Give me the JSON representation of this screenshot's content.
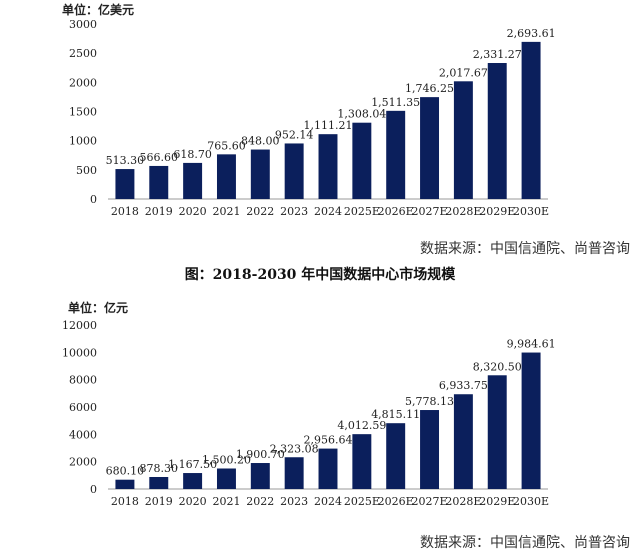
{
  "bar_color": "#0b1f5c",
  "chart_data": [
    {
      "type": "bar",
      "unit_label": "单位：亿美元",
      "categories": [
        "2018",
        "2019",
        "2020",
        "2021",
        "2022",
        "2023",
        "2024",
        "2025E",
        "2026E",
        "2027E",
        "2028E",
        "2029E",
        "2030E"
      ],
      "values": [
        513.3,
        566.6,
        618.7,
        765.6,
        848.0,
        952.14,
        1111.21,
        1308.04,
        1511.35,
        1746.25,
        2017.67,
        2331.27,
        2693.61
      ],
      "labels": [
        "513.30",
        "566.60",
        "618.70",
        "765.60",
        "848.00",
        "952.14",
        "1,111.21",
        "1,308.04",
        "1,511.35",
        "1,746.25",
        "2,017.67",
        "2,331.27",
        "2,693.61"
      ],
      "yticks": [
        "0",
        "500",
        "1000",
        "1500",
        "2000",
        "2500",
        "3000"
      ],
      "ylim": [
        0,
        3000
      ],
      "source": "数据来源：中国信通院、尚普咨询"
    },
    {
      "type": "bar",
      "unit_label": "单位：亿元",
      "categories": [
        "2018",
        "2019",
        "2020",
        "2021",
        "2022",
        "2023",
        "2024",
        "2025E",
        "2026E",
        "2027E",
        "2028E",
        "2029E",
        "2030E"
      ],
      "values": [
        680.1,
        878.3,
        1167.5,
        1500.2,
        1900.7,
        2323.08,
        2956.64,
        4012.59,
        4815.11,
        5778.13,
        6933.75,
        8320.5,
        9984.61
      ],
      "labels": [
        "680.10",
        "878.30",
        "1,167.50",
        "1,500.20",
        "1,900.70",
        "2,323.08",
        "2,956.64",
        "4,012.59",
        "4,815.11",
        "5,778.13",
        "6,933.75",
        "8,320.50",
        "9,984.61"
      ],
      "yticks": [
        "0",
        "2000",
        "4000",
        "6000",
        "8000",
        "10000",
        "12000"
      ],
      "ylim": [
        0,
        12000
      ],
      "source": "数据来源：中国信通院、尚普咨询"
    }
  ],
  "caption": "图：2018-2030 年中国数据中心市场规模"
}
